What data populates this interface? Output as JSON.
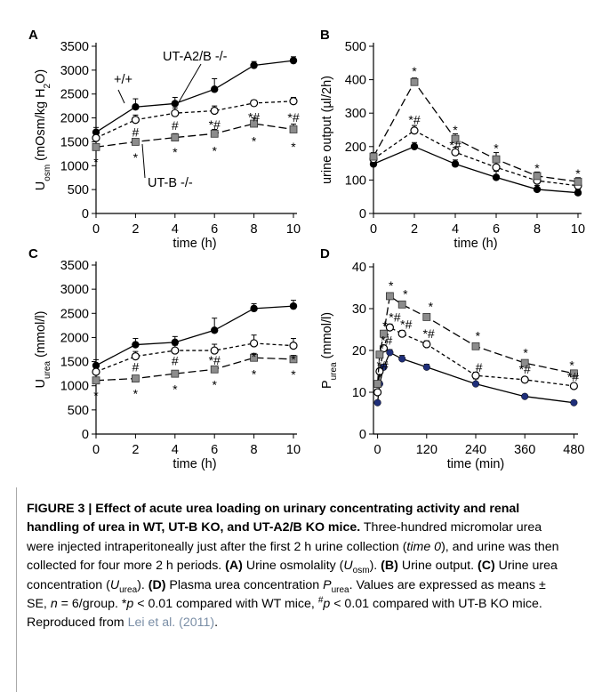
{
  "chart_data": [
    {
      "panel": "A",
      "type": "line",
      "ylabel": "U",
      "ylabel_sub": "osm",
      "ylabel_rest": " (mOsm/kg H",
      "ylabel_sub2": "2",
      "ylabel_end": "O)",
      "xlabel": "time (h)",
      "xlim": [
        0,
        10
      ],
      "ylim": [
        0,
        3500
      ],
      "xticks": [
        0,
        2,
        4,
        6,
        8,
        10
      ],
      "yticks": [
        0,
        500,
        1000,
        1500,
        2000,
        2500,
        3000,
        3500
      ],
      "series": [
        {
          "name": "+/+",
          "marker": "filled-circle",
          "dash": "",
          "x": [
            0,
            2,
            4,
            6,
            8,
            10
          ],
          "y": [
            1700,
            2230,
            2300,
            2600,
            3100,
            3200
          ],
          "err": [
            100,
            170,
            130,
            220,
            80,
            80
          ]
        },
        {
          "name": "UT-A2/B -/-",
          "marker": "open-circle",
          "dash": "4,3",
          "x": [
            0,
            2,
            4,
            6,
            8,
            10
          ],
          "y": [
            1580,
            1960,
            2100,
            2150,
            2310,
            2350
          ],
          "err": [
            80,
            100,
            110,
            100,
            60,
            80
          ]
        },
        {
          "name": "UT-B -/-",
          "marker": "gray-square",
          "dash": "9,4",
          "x": [
            0,
            2,
            4,
            6,
            8,
            10
          ],
          "y": [
            1390,
            1500,
            1590,
            1670,
            1880,
            1760
          ],
          "err": [
            60,
            60,
            80,
            90,
            120,
            110
          ]
        }
      ],
      "annotations": [
        {
          "text": "*",
          "x": 0,
          "y": 1080
        },
        {
          "text": "*",
          "x": 2,
          "y": 1170
        },
        {
          "text": "#",
          "x": 2,
          "y": 1700
        },
        {
          "text": "*",
          "x": 4,
          "y": 1280
        },
        {
          "text": "#",
          "x": 4,
          "y": 1840
        },
        {
          "text": "*",
          "x": 6,
          "y": 1310
        },
        {
          "text": "*#",
          "x": 6,
          "y": 1860
        },
        {
          "text": "*",
          "x": 8,
          "y": 1520
        },
        {
          "text": "*#",
          "x": 8,
          "y": 2020
        },
        {
          "text": "*",
          "x": 10,
          "y": 1400
        },
        {
          "text": "*#",
          "x": 10,
          "y": 2010
        }
      ]
    },
    {
      "panel": "B",
      "type": "line",
      "ylabel": "urine output (µl/2h)",
      "xlabel": "time (h)",
      "xlim": [
        0,
        10
      ],
      "ylim": [
        0,
        500
      ],
      "xticks": [
        0,
        2,
        4,
        6,
        8,
        10
      ],
      "yticks": [
        0,
        100,
        200,
        300,
        400,
        500
      ],
      "series": [
        {
          "marker": "filled-circle",
          "dash": "",
          "x": [
            0,
            2,
            4,
            6,
            8,
            10
          ],
          "y": [
            148,
            200,
            148,
            108,
            72,
            62
          ],
          "err": [
            12,
            12,
            12,
            18,
            12,
            10
          ]
        },
        {
          "marker": "open-circle",
          "dash": "4,3",
          "x": [
            0,
            2,
            4,
            6,
            8,
            10
          ],
          "y": [
            163,
            248,
            183,
            138,
            98,
            83
          ],
          "err": [
            10,
            15,
            15,
            18,
            14,
            12
          ]
        },
        {
          "marker": "gray-square",
          "dash": "9,4",
          "x": [
            0,
            2,
            4,
            6,
            8,
            10
          ],
          "y": [
            170,
            393,
            223,
            162,
            112,
            95
          ],
          "err": [
            12,
            12,
            15,
            20,
            12,
            12
          ]
        }
      ],
      "annotations": [
        {
          "text": "*",
          "x": 2,
          "y": 425
        },
        {
          "text": "*#",
          "x": 2,
          "y": 280
        },
        {
          "text": "*",
          "x": 4,
          "y": 250
        },
        {
          "text": "*#",
          "x": 4,
          "y": 205
        },
        {
          "text": "*",
          "x": 6,
          "y": 195
        },
        {
          "text": "*",
          "x": 8,
          "y": 135
        },
        {
          "text": "*",
          "x": 10,
          "y": 120
        }
      ]
    },
    {
      "panel": "C",
      "type": "line",
      "ylabel": "U",
      "ylabel_sub": "urea",
      "ylabel_rest": " (mmol/l)",
      "xlabel": "time (h)",
      "xlim": [
        0,
        10
      ],
      "ylim": [
        0,
        3500
      ],
      "xticks": [
        0,
        2,
        4,
        6,
        8,
        10
      ],
      "yticks": [
        0,
        500,
        1000,
        1500,
        2000,
        2500,
        3000,
        3500
      ],
      "series": [
        {
          "marker": "filled-circle",
          "dash": "",
          "x": [
            0,
            2,
            4,
            6,
            8,
            10
          ],
          "y": [
            1420,
            1850,
            1900,
            2150,
            2600,
            2650
          ],
          "err": [
            120,
            130,
            120,
            250,
            100,
            120
          ]
        },
        {
          "marker": "open-circle",
          "dash": "4,3",
          "x": [
            0,
            2,
            4,
            6,
            8,
            10
          ],
          "y": [
            1290,
            1610,
            1730,
            1730,
            1880,
            1830
          ],
          "err": [
            80,
            100,
            110,
            130,
            170,
            150
          ]
        },
        {
          "marker": "gray-square",
          "dash": "9,4",
          "x": [
            0,
            2,
            4,
            6,
            8,
            10
          ],
          "y": [
            1110,
            1150,
            1250,
            1340,
            1580,
            1550
          ],
          "err": [
            60,
            60,
            60,
            60,
            90,
            80
          ]
        }
      ],
      "annotations": [
        {
          "text": "*",
          "x": 0,
          "y": 800
        },
        {
          "text": "*",
          "x": 2,
          "y": 840
        },
        {
          "text": "#",
          "x": 2,
          "y": 1390
        },
        {
          "text": "*",
          "x": 4,
          "y": 930
        },
        {
          "text": "#",
          "x": 4,
          "y": 1520
        },
        {
          "text": "*",
          "x": 6,
          "y": 1020
        },
        {
          "text": "*#",
          "x": 6,
          "y": 1530
        },
        {
          "text": "*",
          "x": 8,
          "y": 1240
        },
        {
          "text": "*",
          "x": 8,
          "y": 1600
        },
        {
          "text": "*",
          "x": 10,
          "y": 1230
        },
        {
          "text": "*",
          "x": 10,
          "y": 1550
        }
      ]
    },
    {
      "panel": "D",
      "type": "line",
      "ylabel": "P",
      "ylabel_sub": "urea",
      "ylabel_rest": " (mmol/l)",
      "xlabel": "time (min)",
      "xlim": [
        -10,
        490
      ],
      "ylim": [
        0,
        40
      ],
      "xticks": [
        0,
        120,
        240,
        360,
        480
      ],
      "yticks": [
        0,
        10,
        20,
        30,
        40
      ],
      "series": [
        {
          "marker": "blue-circle",
          "dash": "",
          "x": [
            0,
            5,
            15,
            30,
            60,
            120,
            240,
            360,
            480
          ],
          "y": [
            7.5,
            12,
            16,
            19.5,
            18,
            16,
            12,
            9,
            7.5
          ],
          "err": [
            0.5,
            0.6,
            0.6,
            0.7,
            0.8,
            0.7,
            1.2,
            0.5,
            0.4
          ]
        },
        {
          "marker": "open-circle",
          "dash": "4,3",
          "x": [
            0,
            5,
            15,
            30,
            60,
            120,
            240,
            360,
            480
          ],
          "y": [
            10,
            15,
            20.5,
            25.5,
            24,
            21.5,
            14,
            13,
            11.5
          ],
          "err": [
            0.6,
            0.7,
            0.8,
            0.8,
            0.8,
            0.8,
            0.8,
            0.6,
            0.5
          ]
        },
        {
          "marker": "gray-square",
          "dash": "9,4",
          "x": [
            0,
            5,
            15,
            30,
            60,
            120,
            240,
            360,
            480
          ],
          "y": [
            12,
            19,
            24,
            33,
            31,
            28,
            21,
            17,
            14.5
          ],
          "err": [
            0.6,
            0.7,
            0.8,
            0.8,
            0.8,
            0.8,
            0.8,
            0.7,
            0.6
          ]
        }
      ],
      "annotations": [
        {
          "text": "*",
          "x": 5,
          "y": 13.5
        },
        {
          "text": "*",
          "x": 10,
          "y": 20.5
        },
        {
          "text": "*",
          "x": 18,
          "y": 26
        },
        {
          "text": "*",
          "x": 33,
          "y": 35.5
        },
        {
          "text": "*",
          "x": 68,
          "y": 33.5
        },
        {
          "text": "*",
          "x": 130,
          "y": 30.5
        },
        {
          "text": "*",
          "x": 245,
          "y": 23.5
        },
        {
          "text": "*",
          "x": 362,
          "y": 19.5
        },
        {
          "text": "*",
          "x": 475,
          "y": 16.5
        },
        {
          "text": "*#",
          "x": 12,
          "y": 16.5
        },
        {
          "text": "*#",
          "x": 22,
          "y": 22.5
        },
        {
          "text": "*#",
          "x": 42,
          "y": 28
        },
        {
          "text": "*#",
          "x": 70,
          "y": 26.3
        },
        {
          "text": "*#",
          "x": 125,
          "y": 24
        },
        {
          "text": "#",
          "x": 248,
          "y": 16
        },
        {
          "text": "*#",
          "x": 360,
          "y": 15.5
        },
        {
          "text": "*#",
          "x": 478,
          "y": 13.7
        }
      ]
    }
  ],
  "caption": {
    "title": "FIGURE 3 | Effect of acute urea loading on urinary concentrating activity and renal handling of urea in WT, UT-B KO, and UT-A2/B KO mice.",
    "s1": " Three-hundred micromolar urea were injected intraperitoneally just after the first 2 h urine collection (",
    "s1_italic": "time 0",
    "s2": "), and urine was then collected for four more 2 h periods. ",
    "a_label": "(A)",
    "a_text": " Urine osmolality (",
    "a_sym": "U",
    "a_sub": "osm",
    "a_end": "). ",
    "b_label": "(B)",
    "b_text": " Urine output. ",
    "c_label": "(C)",
    "c_text": " Urine urea concentration (",
    "c_sym": "U",
    "c_sub": "urea",
    "c_end": "). ",
    "d_label": "(D)",
    "d_text": " Plasma urea concentration ",
    "d_sym": "P",
    "d_sub": "urea",
    "d_end": ". Values are expressed as means ± SE, ",
    "n_sym": "n",
    "n_text": " = 6/group. ",
    "p1_star": "*",
    "p1_sym": "p",
    "p1_text": " < 0.01 compared with WT mice, ",
    "p2_sup": "#",
    "p2_sym": "p",
    "p2_text": " < 0.01 compared with UT-B KO mice. Reproduced from ",
    "ref": "Lei et al. (2011)",
    "end": "."
  }
}
